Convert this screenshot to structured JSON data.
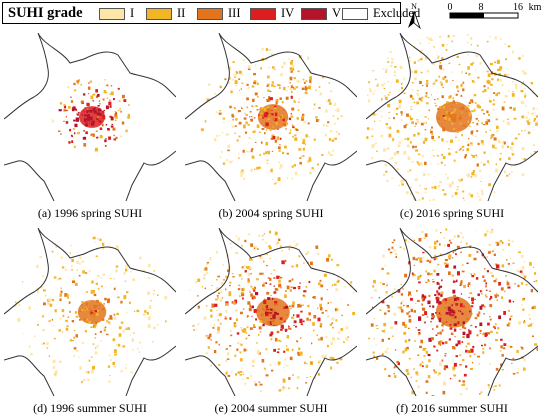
{
  "legend": {
    "title": "SUHI grade",
    "items": [
      {
        "label": "I",
        "color": "#fde6a8"
      },
      {
        "label": "II",
        "color": "#f2b526"
      },
      {
        "label": "III",
        "color": "#e2741d"
      },
      {
        "label": "IV",
        "color": "#dc1e1e"
      },
      {
        "label": "V",
        "color": "#b3132b"
      },
      {
        "label": "Excluded",
        "color": "#ffffff"
      }
    ]
  },
  "north_label": "N",
  "scale": {
    "ticks": [
      "0",
      "8",
      "16"
    ],
    "unit": "km"
  },
  "panels": [
    {
      "caption": "(a) 1996 spring SUHI",
      "season": "spring",
      "year": "1996"
    },
    {
      "caption": "(b) 2004 spring SUHI",
      "season": "spring",
      "year": "2004"
    },
    {
      "caption": "(c) 2016 spring SUHI",
      "season": "spring",
      "year": "2016"
    },
    {
      "caption": "(d) 1996 summer SUHI",
      "season": "summer",
      "year": "1996"
    },
    {
      "caption": "(e) 2004 summer SUHI",
      "season": "summer",
      "year": "2004"
    },
    {
      "caption": "(f) 2016 summer SUHI",
      "season": "summer",
      "year": "2016"
    }
  ]
}
